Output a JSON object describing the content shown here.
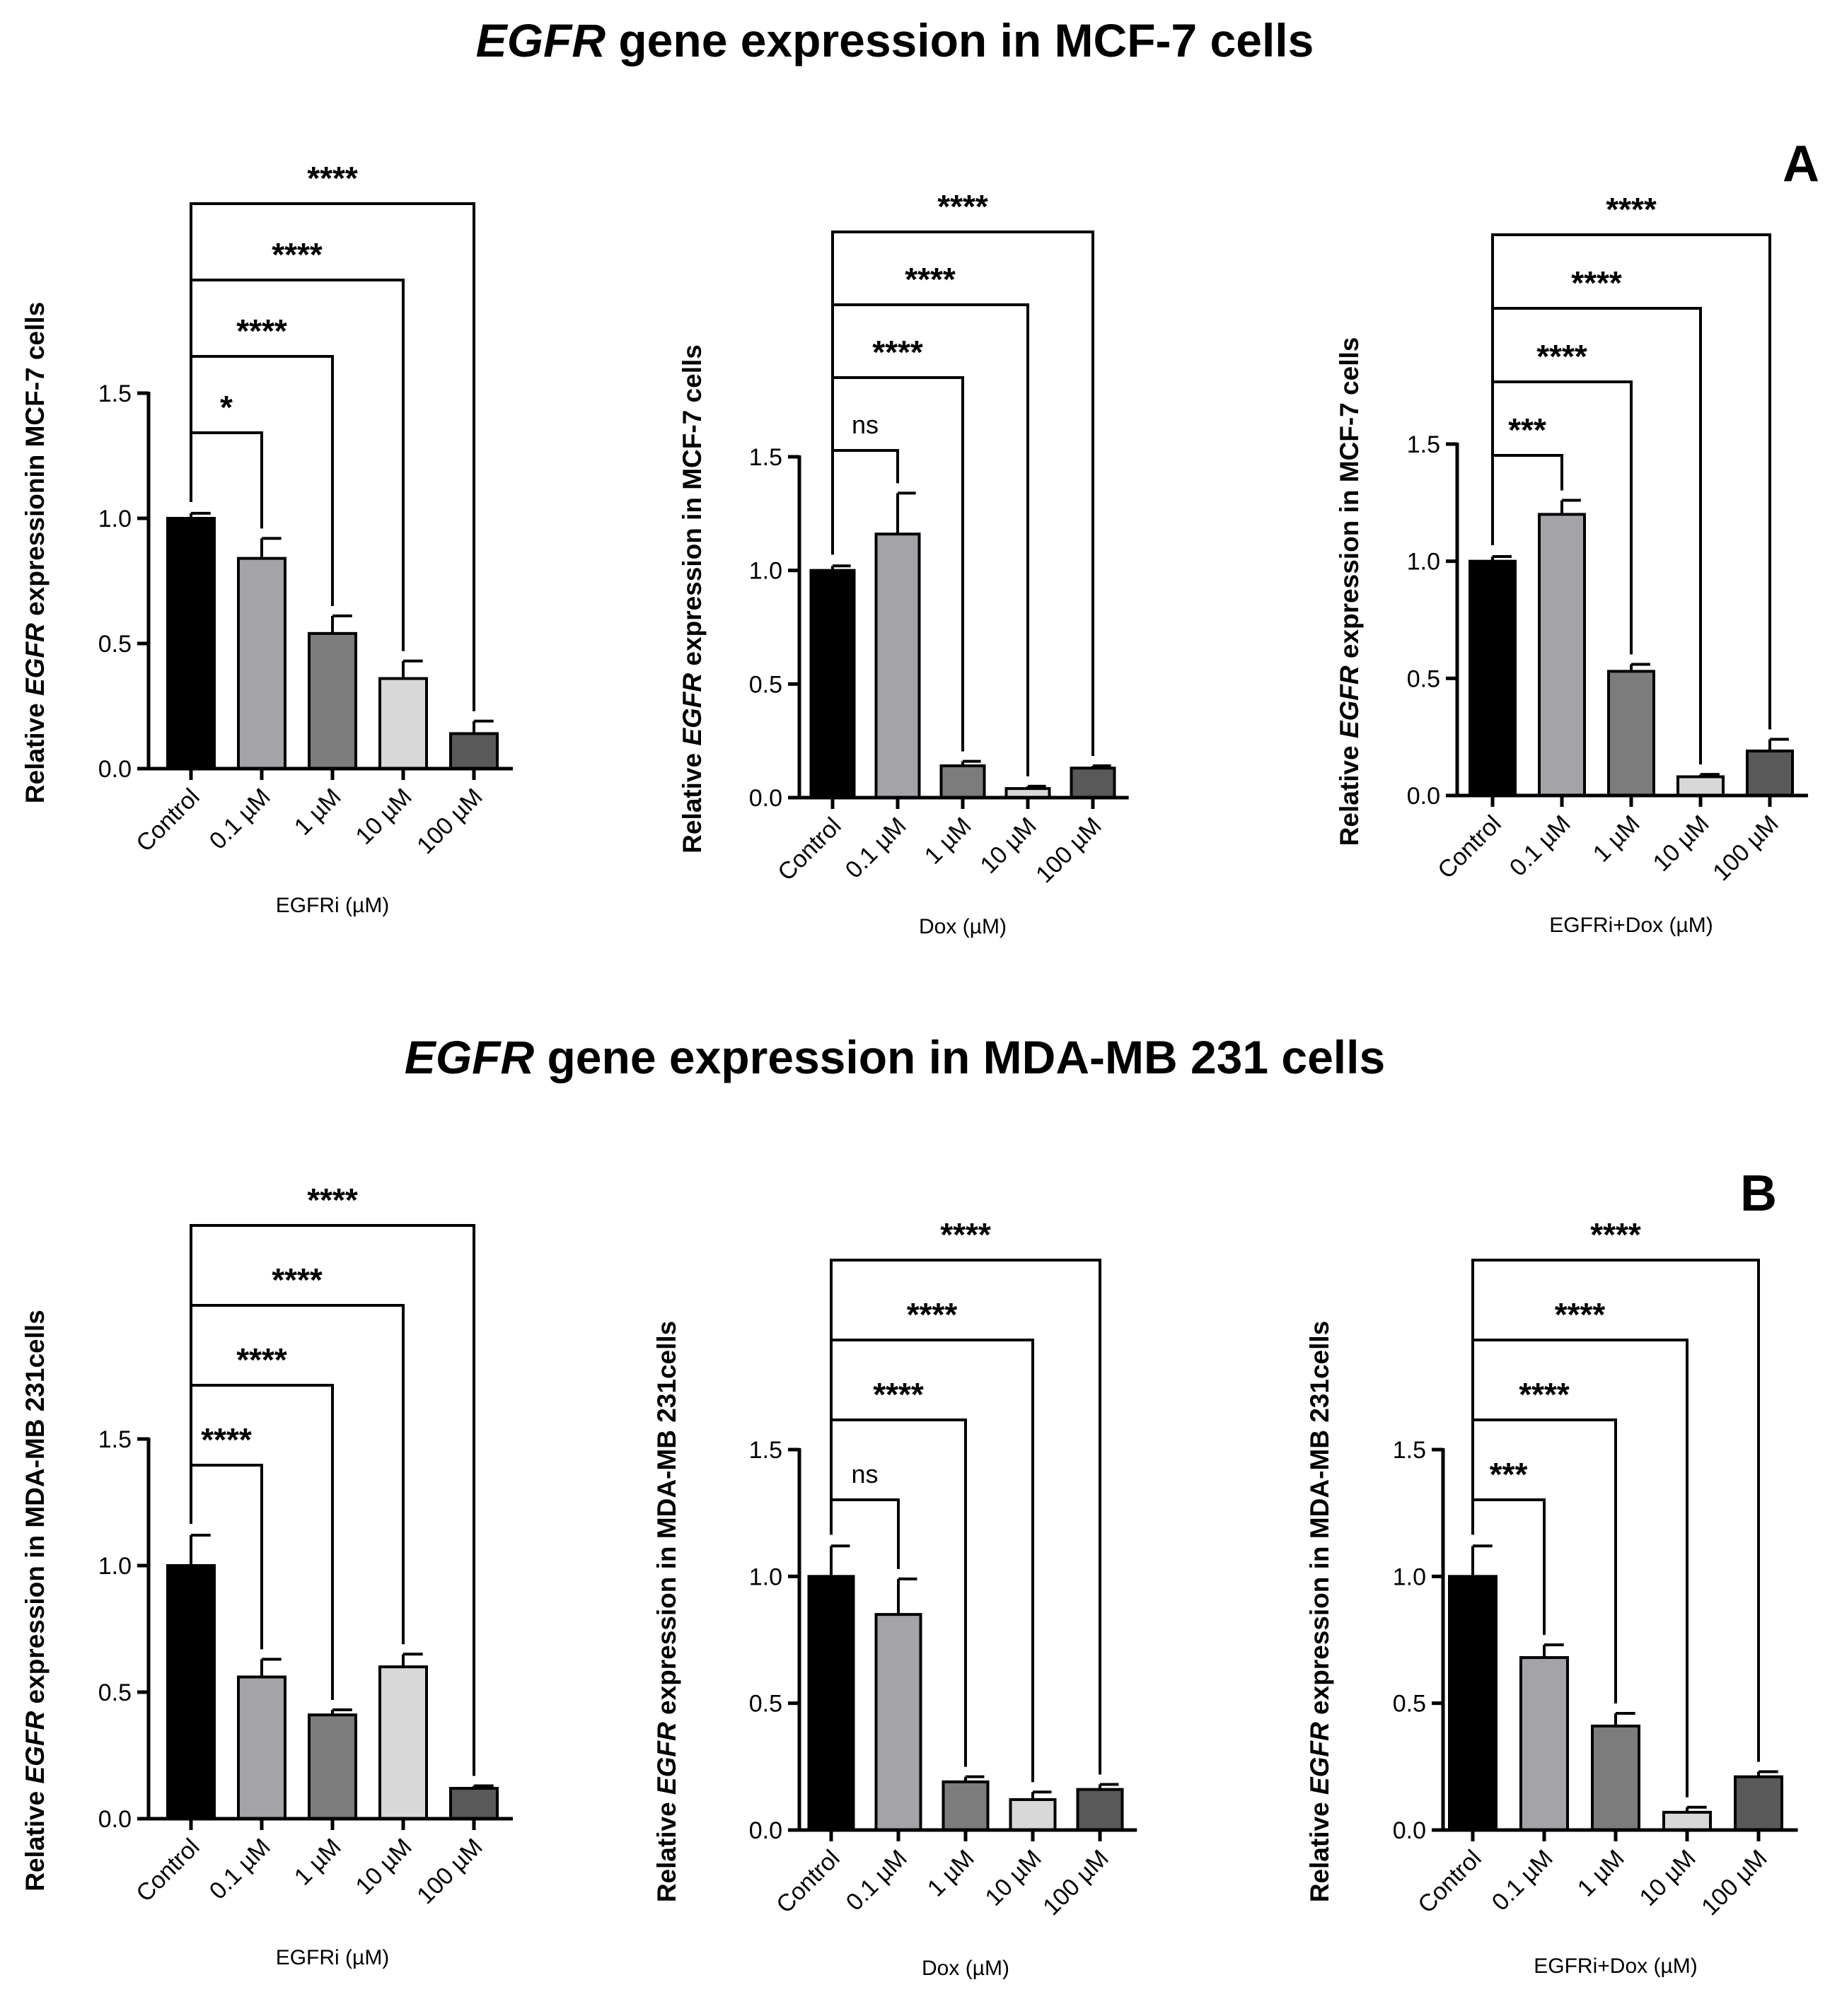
{
  "figure": {
    "section_a": {
      "title_gene": "EGFR",
      "title_rest": " gene expression in MCF-7 cells",
      "letter": "A"
    },
    "section_b": {
      "title_gene": "EGFR",
      "title_rest": " gene expression in MDA-MB 231 cells",
      "letter": "B"
    }
  },
  "colors": {
    "c0": "#000000",
    "c1": "#a3a3a8",
    "c2": "#7c7c7c",
    "c3": "#d8d8d8",
    "c4": "#595959"
  },
  "chart_data": [
    {
      "id": "a1",
      "type": "bar",
      "categories": [
        "Control",
        "0.1 µM",
        "1 µM",
        "10 µM",
        "100 µM"
      ],
      "values": [
        1.0,
        0.84,
        0.54,
        0.36,
        0.14
      ],
      "errors": [
        0.02,
        0.08,
        0.07,
        0.07,
        0.05
      ],
      "ylim": [
        0,
        1.5
      ],
      "yticks": [
        "0.0",
        "0.5",
        "1.0",
        "1.5"
      ],
      "xlabel": "EGFRi (µM)",
      "ylabel": [
        [
          "Relative ",
          false
        ],
        [
          "EGFR",
          true
        ],
        [
          " expressionin MCF-7 cells",
          false
        ]
      ],
      "significance": [
        "*",
        "****",
        "****",
        "****"
      ]
    },
    {
      "id": "a2",
      "type": "bar",
      "categories": [
        "Control",
        "0.1 µM",
        "1 µM",
        "10 µM",
        "100 µM"
      ],
      "values": [
        1.0,
        1.16,
        0.14,
        0.04,
        0.13
      ],
      "errors": [
        0.02,
        0.18,
        0.02,
        0.01,
        0.01
      ],
      "ylim": [
        0,
        1.5
      ],
      "yticks": [
        "0.0",
        "0.5",
        "1.0",
        "1.5"
      ],
      "xlabel": "Dox (µM)",
      "ylabel": [
        [
          "Relative ",
          false
        ],
        [
          "EGFR",
          true
        ],
        [
          " expression in MCF-7 cells",
          false
        ]
      ],
      "significance": [
        "ns",
        "****",
        "****",
        "****"
      ]
    },
    {
      "id": "a3",
      "type": "bar",
      "categories": [
        "Control",
        "0.1 µM",
        "1 µM",
        "10 µM",
        "100 µM"
      ],
      "values": [
        1.0,
        1.2,
        0.53,
        0.08,
        0.19
      ],
      "errors": [
        0.02,
        0.06,
        0.03,
        0.01,
        0.05
      ],
      "ylim": [
        0,
        1.5
      ],
      "yticks": [
        "0.0",
        "0.5",
        "1.0",
        "1.5"
      ],
      "xlabel": "EGFRi+Dox (µM)",
      "ylabel": [
        [
          "Relative ",
          false
        ],
        [
          "EGFR",
          true
        ],
        [
          " expression in MCF-7 cells",
          false
        ]
      ],
      "significance": [
        "***",
        "****",
        "****",
        "****"
      ]
    },
    {
      "id": "b1",
      "type": "bar",
      "categories": [
        "Control",
        "0.1 µM",
        "1 µM",
        "10 µM",
        "100 µM"
      ],
      "values": [
        1.0,
        0.56,
        0.41,
        0.6,
        0.12
      ],
      "errors": [
        0.12,
        0.07,
        0.02,
        0.05,
        0.01
      ],
      "ylim": [
        0,
        1.5
      ],
      "yticks": [
        "0.0",
        "0.5",
        "1.0",
        "1.5"
      ],
      "xlabel": "EGFRi (µM)",
      "ylabel": [
        [
          "Relative ",
          false
        ],
        [
          "EGFR",
          true
        ],
        [
          " expression in MDA-MB 231cells",
          false
        ]
      ],
      "significance": [
        "****",
        "****",
        "****",
        "****"
      ]
    },
    {
      "id": "b2",
      "type": "bar",
      "categories": [
        "Control",
        "0.1 µM",
        "1 µM",
        "10 µM",
        "100 µM"
      ],
      "values": [
        1.0,
        0.85,
        0.19,
        0.12,
        0.16
      ],
      "errors": [
        0.12,
        0.14,
        0.02,
        0.03,
        0.02
      ],
      "ylim": [
        0,
        1.5
      ],
      "yticks": [
        "0.0",
        "0.5",
        "1.0",
        "1.5"
      ],
      "xlabel": "Dox (µM)",
      "ylabel": [
        [
          "Relative ",
          false
        ],
        [
          "EGFR",
          true
        ],
        [
          " expression in MDA-MB 231cells",
          false
        ]
      ],
      "significance": [
        "ns",
        "****",
        "****",
        "****"
      ]
    },
    {
      "id": "b3",
      "type": "bar",
      "categories": [
        "Control",
        "0.1 µM",
        "1 µM",
        "10 µM",
        "100 µM"
      ],
      "values": [
        1.0,
        0.68,
        0.41,
        0.07,
        0.21
      ],
      "errors": [
        0.12,
        0.05,
        0.05,
        0.02,
        0.02
      ],
      "ylim": [
        0,
        1.5
      ],
      "yticks": [
        "0.0",
        "0.5",
        "1.0",
        "1.5"
      ],
      "xlabel": "EGFRi+Dox (µM)",
      "ylabel": [
        [
          "Relative ",
          false
        ],
        [
          "EGFR",
          true
        ],
        [
          " expression in MDA-MB 231cells",
          false
        ]
      ],
      "significance": [
        "***",
        "****",
        "****",
        "****"
      ]
    }
  ]
}
